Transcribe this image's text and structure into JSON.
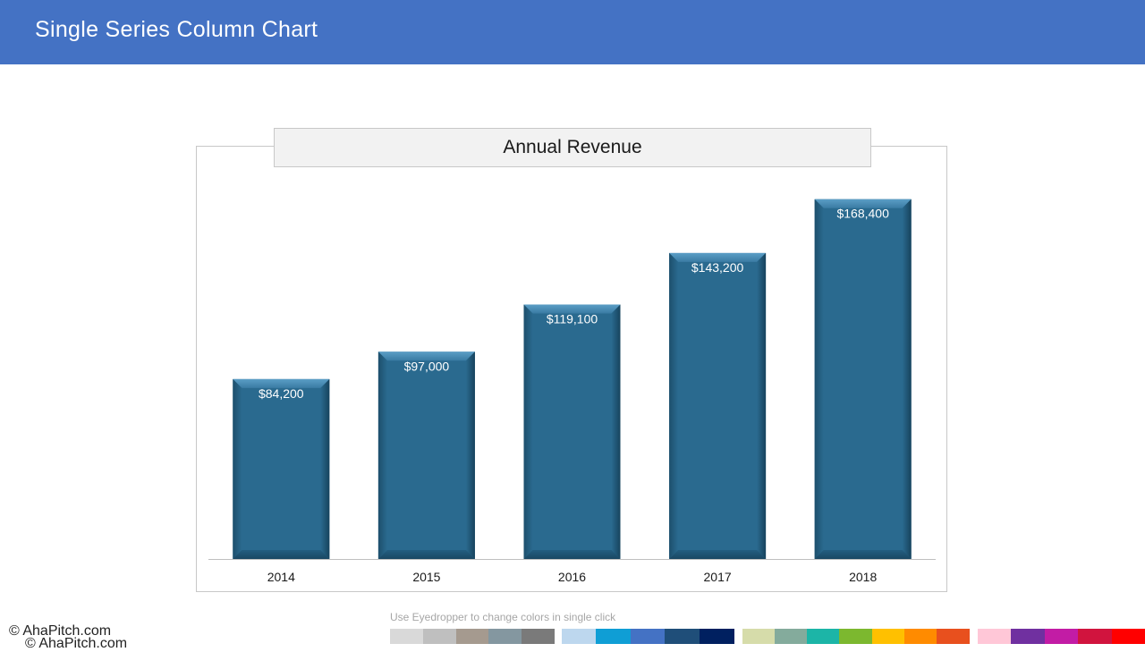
{
  "header": {
    "title": "Single Series Column Chart"
  },
  "chart_data": {
    "type": "bar",
    "title": "Annual Revenue",
    "categories": [
      "2014",
      "2015",
      "2016",
      "2017",
      "2018"
    ],
    "values": [
      84200,
      97000,
      119100,
      143200,
      168400
    ],
    "data_labels": [
      "$84,200",
      "$97,000",
      "$119,100",
      "$143,200",
      "$168,400"
    ],
    "xlabel": "",
    "ylabel": "",
    "ylim": [
      0,
      180000
    ],
    "grid": false,
    "legend": "none",
    "bar_color": "#2a6a8f"
  },
  "footer": {
    "copyright": "© AhaPitch.com",
    "hint": "Use Eyedropper to change colors in single click"
  },
  "palette": [
    "#d9d9d9",
    "#bfbfbf",
    "#a59a8f",
    "#8497a0",
    "#7a7a7a",
    "#bdd7ee",
    "#0f9ed5",
    "#4472c4",
    "#1f4e79",
    "#002060",
    "#d6dcaa",
    "#84ab9c",
    "#1cb5a7",
    "#7cb82f",
    "#ffc000",
    "#ff8b00",
    "#e8501e",
    "#ffc7d7",
    "#7030a0",
    "#c21ca5",
    "#d1143e",
    "#ff0000"
  ]
}
